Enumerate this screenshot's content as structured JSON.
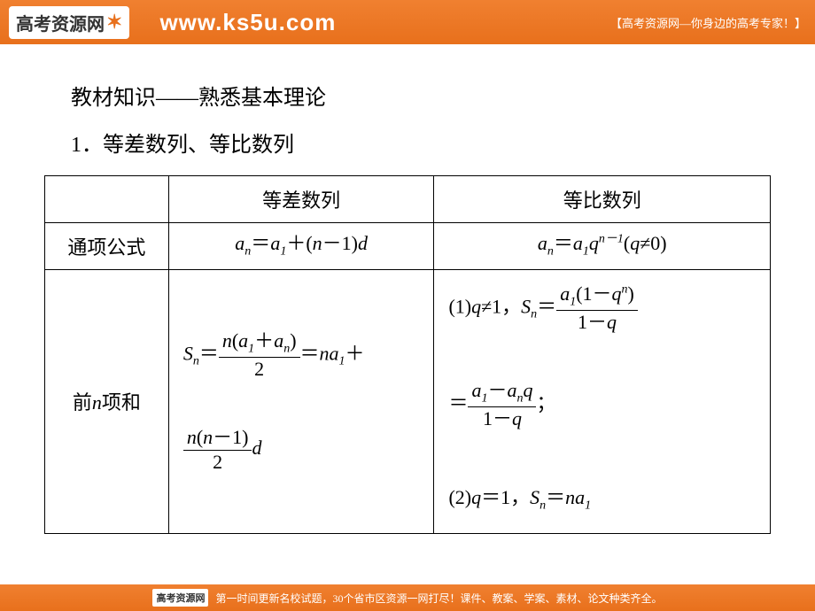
{
  "header": {
    "logo_text": "高考资源网",
    "url": "www.ks5u.com",
    "tagline": "【高考资源网—你身边的高考专家！】"
  },
  "content": {
    "heading": "教材知识——熟悉基本理论",
    "subheading": "1．等差数列、等比数列",
    "table": {
      "col1_header": "",
      "col2_header": "等差数列",
      "col3_header": "等比数列",
      "row1_label": "通项公式",
      "row2_label": "前n项和"
    }
  },
  "footer": {
    "logo": "高考资源网",
    "text": "第一时间更新名校试题，30个省市区资源一网打尽！课件、教案、学案、素材、论文种类齐全。"
  },
  "colors": {
    "header_bg": "#e8701c",
    "text": "#000000",
    "border": "#000000"
  }
}
